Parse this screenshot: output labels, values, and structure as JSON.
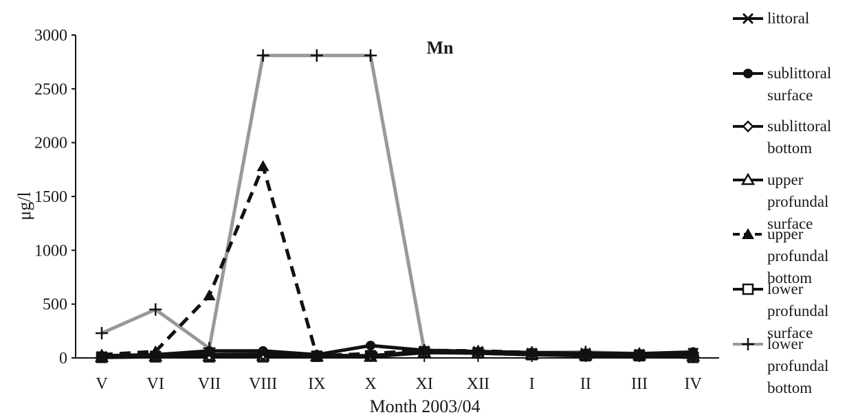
{
  "chart_data": {
    "type": "line",
    "title": "Mn",
    "xlabel": "Month  2003/04",
    "ylabel": "μg/l",
    "ylim": [
      0,
      3000
    ],
    "yticks": [
      0,
      500,
      1000,
      1500,
      2000,
      2500,
      3000
    ],
    "categories": [
      "V",
      "VI",
      "VII",
      "VIII",
      "IX",
      "X",
      "XI",
      "XII",
      "I",
      "II",
      "III",
      "IV"
    ],
    "grid": false,
    "legend_position": "right",
    "series": [
      {
        "name": "littoral",
        "marker": "x",
        "color": "#111111",
        "dash": "solid",
        "values": [
          15,
          20,
          30,
          35,
          20,
          15,
          65,
          60,
          45,
          45,
          35,
          45
        ]
      },
      {
        "name": "sublittoral surface",
        "marker": "circle",
        "color": "#111111",
        "dash": "solid",
        "values": [
          20,
          30,
          65,
          65,
          30,
          115,
          70,
          60,
          50,
          45,
          40,
          55
        ]
      },
      {
        "name": "sublittoral bottom",
        "marker": "diamond",
        "color": "#111111",
        "dash": "solid",
        "values": [
          10,
          25,
          20,
          30,
          25,
          20,
          55,
          50,
          35,
          30,
          30,
          20
        ]
      },
      {
        "name": "upper profundal surface",
        "marker": "triangle-open",
        "color": "#111111",
        "dash": "solid",
        "values": [
          8,
          15,
          15,
          20,
          15,
          10,
          50,
          45,
          30,
          25,
          25,
          15
        ]
      },
      {
        "name": "upper profundal bottom",
        "marker": "triangle-filled",
        "color": "#111111",
        "dash": "dashed",
        "values": [
          30,
          60,
          580,
          1780,
          20,
          40,
          70,
          65,
          50,
          40,
          35,
          30
        ]
      },
      {
        "name": "lower profundal surface",
        "marker": "square-open",
        "color": "#111111",
        "dash": "solid",
        "values": [
          5,
          10,
          10,
          10,
          15,
          20,
          55,
          45,
          30,
          20,
          20,
          5
        ]
      },
      {
        "name": "lower profundal bottom",
        "marker": "plus",
        "color": "#999999",
        "dash": "solid",
        "values": [
          230,
          450,
          90,
          2810,
          2810,
          2810,
          70,
          60,
          50,
          55,
          40,
          10
        ]
      }
    ]
  }
}
